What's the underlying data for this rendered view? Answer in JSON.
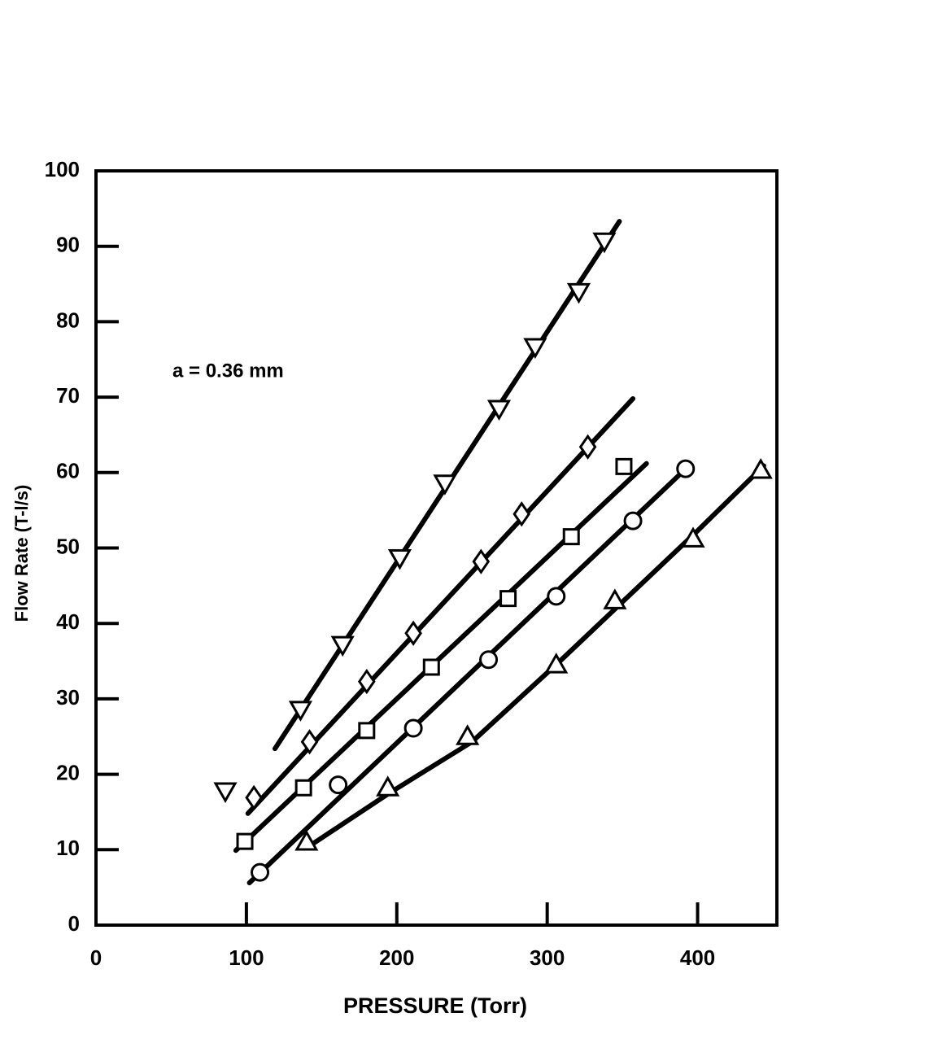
{
  "chart_data": {
    "type": "scatter",
    "y_label": "Flow Rate (T-l/s)",
    "x_label": "PRESSURE (Torr)",
    "annotation": "a = 0.36 mm",
    "xlim": [
      0,
      450
    ],
    "ylim": [
      0,
      100
    ],
    "xticks": [
      0,
      100,
      200,
      300,
      400
    ],
    "yticks": [
      0,
      10,
      20,
      30,
      40,
      50,
      60,
      70,
      80,
      90,
      100
    ],
    "color": "#000000",
    "series": [
      {
        "marker": "triangle-down",
        "x": [
          86,
          136,
          164,
          202,
          232,
          268,
          292,
          321,
          338
        ],
        "values": [
          17.8,
          28.6,
          37.2,
          48.7,
          58.6,
          68.5,
          76.7,
          84,
          90.7
        ]
      },
      {
        "marker": "diamond",
        "x": [
          105,
          142,
          180,
          211,
          256,
          283,
          327
        ],
        "values": [
          16.9,
          24.3,
          32.3,
          38.7,
          48.2,
          54.5,
          63.4
        ]
      },
      {
        "marker": "square",
        "x": [
          99,
          138,
          180,
          223,
          274,
          316,
          351
        ],
        "values": [
          11.1,
          18.2,
          25.8,
          34.2,
          43.3,
          51.5,
          60.8
        ]
      },
      {
        "marker": "circle",
        "x": [
          109,
          161,
          211,
          261,
          306,
          357,
          392
        ],
        "values": [
          7.0,
          18.6,
          26.1,
          35.2,
          43.6,
          53.6,
          60.5
        ]
      },
      {
        "marker": "triangle-up",
        "x": [
          140,
          194,
          247,
          306,
          345,
          397,
          442
        ],
        "values": [
          11.0,
          18.2,
          25.0,
          34.5,
          43.0,
          51.2,
          60.3
        ]
      }
    ],
    "fit_lines": [
      {
        "x": [
          119,
          348
        ],
        "values": [
          23.4,
          93.3
        ]
      },
      {
        "x": [
          101,
          357
        ],
        "values": [
          14.8,
          69.8
        ]
      },
      {
        "x": [
          93,
          366
        ],
        "values": [
          9.9,
          61.2
        ]
      },
      {
        "x": [
          102,
          390
        ],
        "values": [
          5.6,
          60.1
        ]
      },
      {
        "x": [
          142,
          195,
          250,
          309,
          399,
          444
        ],
        "values": [
          10.5,
          17.5,
          24.3,
          35.1,
          52.1,
          60.9
        ]
      }
    ]
  }
}
